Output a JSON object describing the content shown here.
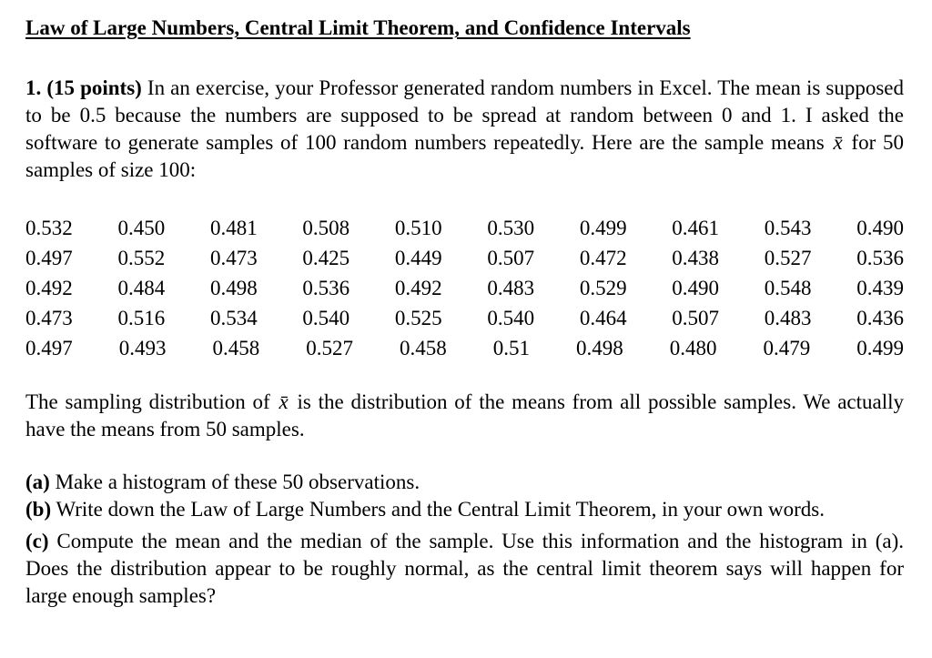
{
  "document": {
    "title": "Law of Large Numbers, Central Limit Theorem, and Confidence Intervals",
    "problem": {
      "number_label": "1. (15 points)",
      "intro_before_xbar": " In an exercise, your Professor generated random numbers in Excel. The mean is supposed to be 0.5 because the numbers are supposed to be spread at random between 0 and 1. I asked the software to generate samples of 100 random numbers repeatedly. Here are the sample means ",
      "xbar_symbol": "x̄",
      "intro_after_xbar": " for 50 samples of size 100:"
    },
    "sample_means": {
      "rows": [
        [
          "0.532",
          "0.450",
          "0.481",
          "0.508",
          "0.510",
          "0.530",
          "0.499",
          "0.461",
          "0.543",
          "0.490"
        ],
        [
          "0.497",
          "0.552",
          "0.473",
          "0.425",
          "0.449",
          "0.507",
          "0.472",
          "0.438",
          "0.527",
          "0.536"
        ],
        [
          "0.492",
          "0.484",
          "0.498",
          "0.536",
          "0.492",
          "0.483",
          "0.529",
          "0.490",
          "0.548",
          "0.439"
        ],
        [
          "0.473",
          "0.516",
          "0.534",
          "0.540",
          "0.525",
          "0.540",
          "0.464",
          "0.507",
          "0.483",
          "0.436"
        ],
        [
          "0.497",
          "0.493",
          "0.458",
          "0.527",
          "0.458",
          "0.51",
          "0.498",
          "0.480",
          "0.479",
          "0.499"
        ]
      ]
    },
    "sampling_note": {
      "before_xbar": "The sampling distribution of ",
      "xbar_symbol": "x̄",
      "after_xbar": " is the distribution of the means from all possible samples. We actually have the means from 50 samples."
    },
    "parts": {
      "a": {
        "label": "(a)",
        "text": " Make a histogram of these 50 observations."
      },
      "b": {
        "label": "(b)",
        "text": " Write down the Law of Large Numbers and the Central Limit Theorem, in your own words."
      },
      "c": {
        "label": "(c)",
        "text": " Compute the mean and the median of the sample. Use this information and the histogram in (a). Does the distribution appear to be roughly normal, as the central limit theorem says will happen for large enough samples?"
      }
    }
  }
}
